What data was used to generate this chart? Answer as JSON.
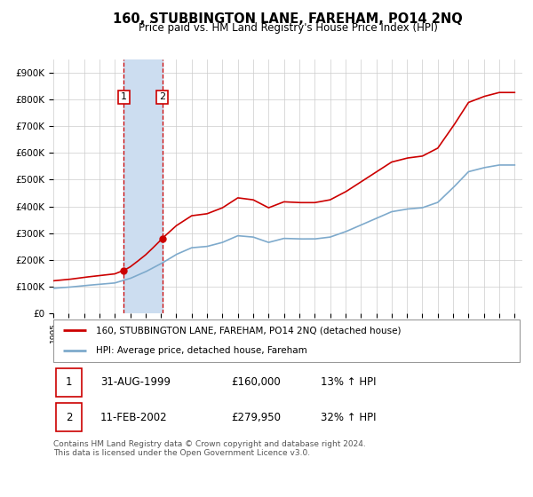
{
  "title": "160, STUBBINGTON LANE, FAREHAM, PO14 2NQ",
  "subtitle": "Price paid vs. HM Land Registry's House Price Index (HPI)",
  "legend_line1": "160, STUBBINGTON LANE, FAREHAM, PO14 2NQ (detached house)",
  "legend_line2": "HPI: Average price, detached house, Fareham",
  "footnote": "Contains HM Land Registry data © Crown copyright and database right 2024.\nThis data is licensed under the Open Government Licence v3.0.",
  "transaction1_date": "31-AUG-1999",
  "transaction1_price": "£160,000",
  "transaction1_hpi": "13% ↑ HPI",
  "transaction2_date": "11-FEB-2002",
  "transaction2_price": "£279,950",
  "transaction2_hpi": "32% ↑ HPI",
  "ytick_labels": [
    "£0",
    "£100K",
    "£200K",
    "£300K",
    "£400K",
    "£500K",
    "£600K",
    "£700K",
    "£800K",
    "£900K"
  ],
  "yticks": [
    0,
    100000,
    200000,
    300000,
    400000,
    500000,
    600000,
    700000,
    800000,
    900000
  ],
  "red_color": "#cc0000",
  "blue_color": "#7eaacc",
  "shaded_region_color": "#ccddf0",
  "background_color": "#ffffff",
  "grid_color": "#cccccc",
  "t1_year": 1999.583,
  "t2_year": 2002.083,
  "t1_price": 160000,
  "t2_price": 279950,
  "xlim_start": 1995,
  "xlim_end": 2025.5
}
